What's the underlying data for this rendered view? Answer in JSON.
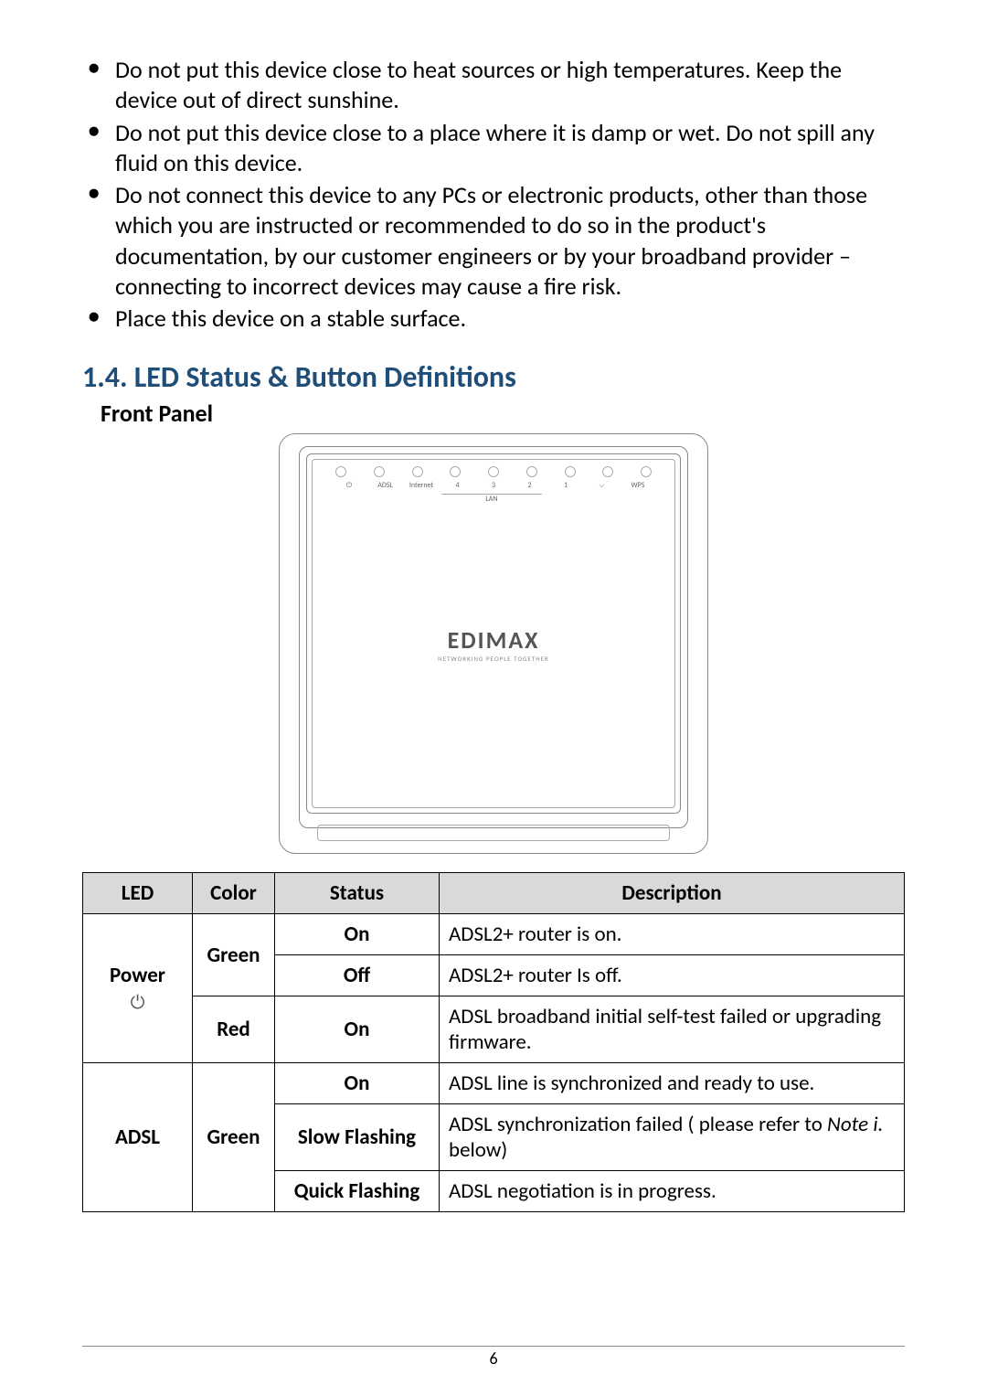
{
  "bullets": {
    "b1": "Do not put this device close to heat sources or high temperatures. Keep the device out of direct sunshine.",
    "b2": "Do not put this device close to a place where it is damp or wet. Do not spill any fluid on this device.",
    "b3": "Do not connect this device to any PCs or electronic products, other than those which you are instructed or recommended to do so in the product's documentation, by our customer engineers or by your broadband provider – connecting to incorrect devices may cause a fire risk.",
    "b4": "Place this device on a stable surface."
  },
  "heading": "1.4. LED Status & Button Definitions",
  "subheading": "Front Panel",
  "device_labels": {
    "l1": "⏻",
    "l2": "ADSL",
    "l3": "Internet",
    "l4": "4",
    "l5": "3",
    "l6": "2",
    "l7": "1",
    "l8": "⌵",
    "l9": "WPS",
    "lan": "LAN"
  },
  "brand": {
    "name": "EDIMAX",
    "tagline": "NETWORKING PEOPLE TOGETHER"
  },
  "table": {
    "headers": {
      "led": "LED",
      "color": "Color",
      "status": "Status",
      "description": "Description"
    },
    "rows": {
      "power_label": "Power",
      "power_icon": "⏻",
      "green": "Green",
      "red": "Red",
      "adsl_label": "ADSL",
      "on": "On",
      "off": "Off",
      "slow": "Slow Flashing",
      "quick": "Quick Flashing",
      "d_power_on": "ADSL2+ router is on.",
      "d_power_off": "ADSL2+ router Is off.",
      "d_power_red": "ADSL broadband initial self-test failed or upgrading firmware.",
      "d_adsl_on": "ADSL line is synchronized and ready to use.",
      "d_adsl_slow_1": "ADSL synchronization failed ( please refer to ",
      "d_adsl_slow_2": "Note i.",
      "d_adsl_slow_3": " below)",
      "d_adsl_quick": "ADSL negotiation is in progress."
    }
  },
  "page_number": "6"
}
